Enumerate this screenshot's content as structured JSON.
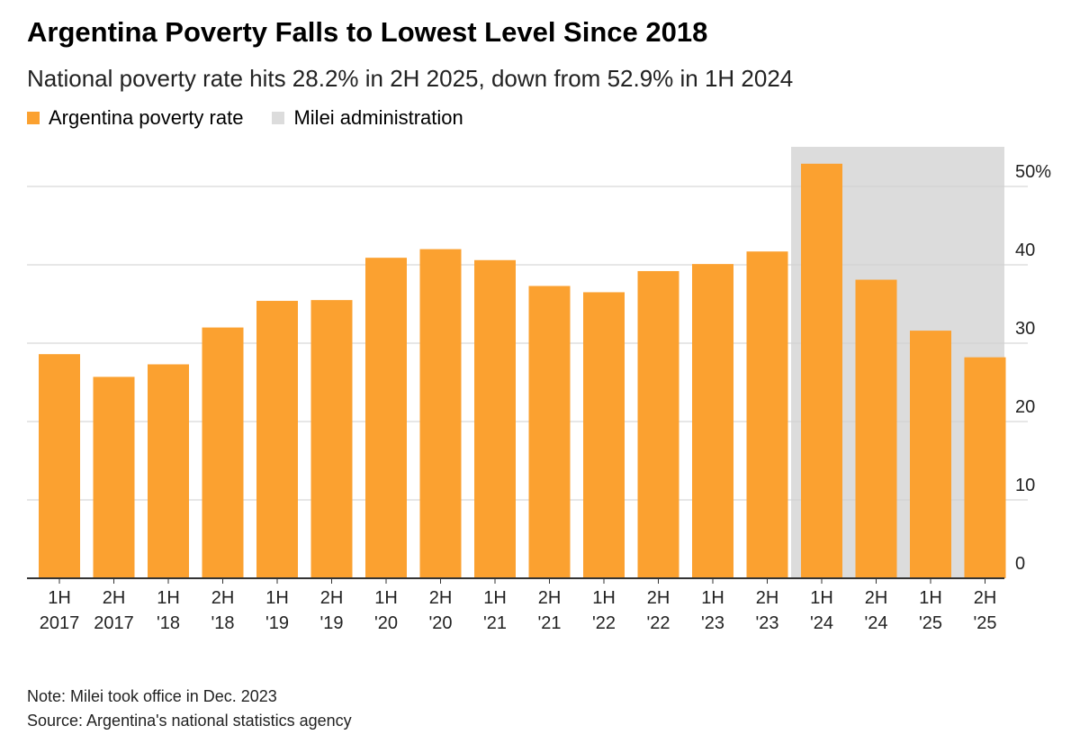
{
  "chart_data": {
    "type": "bar",
    "title": "Argentina Poverty Falls to Lowest Level Since 2018",
    "subtitle": "National poverty rate hits 28.2% in 2H 2025, down from 52.9% in 1H 2024",
    "legend": [
      {
        "label": "Argentina poverty rate",
        "color": "#fba130"
      },
      {
        "label": "Milei administration",
        "color": "#dcdcdc"
      }
    ],
    "categories": [
      [
        "1H",
        "2017"
      ],
      [
        "2H",
        "2017"
      ],
      [
        "1H",
        "'18"
      ],
      [
        "2H",
        "'18"
      ],
      [
        "1H",
        "'19"
      ],
      [
        "2H",
        "'19"
      ],
      [
        "1H",
        "'20"
      ],
      [
        "2H",
        "'20"
      ],
      [
        "1H",
        "'21"
      ],
      [
        "2H",
        "'21"
      ],
      [
        "1H",
        "'22"
      ],
      [
        "2H",
        "'22"
      ],
      [
        "1H",
        "'23"
      ],
      [
        "2H",
        "'23"
      ],
      [
        "1H",
        "'24"
      ],
      [
        "2H",
        "'24"
      ],
      [
        "1H",
        "'25"
      ],
      [
        "2H",
        "'25"
      ]
    ],
    "series": [
      {
        "name": "Argentina poverty rate",
        "values": [
          28.6,
          25.7,
          27.3,
          32.0,
          35.4,
          35.5,
          40.9,
          42.0,
          40.6,
          37.3,
          36.5,
          39.2,
          40.1,
          41.7,
          52.9,
          38.1,
          31.6,
          28.2
        ]
      }
    ],
    "shaded_range": {
      "label": "Milei administration",
      "from_category": 14,
      "to_category": 17
    },
    "yticks": [
      "0",
      "10",
      "20",
      "30",
      "40",
      "50%"
    ],
    "ylim": [
      0,
      55
    ],
    "grid": true,
    "y_axis_side": "right",
    "legend_placement": "top-left"
  },
  "footer": {
    "note": "Note: Milei took office in Dec. 2023",
    "source": "Source: Argentina's national statistics agency"
  }
}
